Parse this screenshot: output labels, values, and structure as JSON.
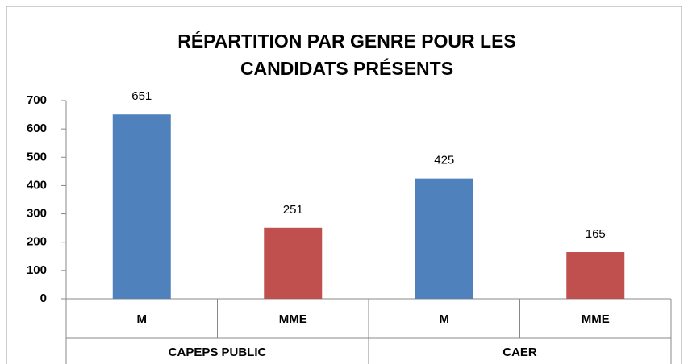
{
  "chart_data": {
    "type": "bar",
    "title": "RÉPARTITION PAR GENRE POUR LES CANDIDATS PRÉSENTS",
    "groups": [
      {
        "name": "CAPEPS PUBLIC",
        "categories": [
          "M",
          "MME"
        ],
        "values": [
          651,
          251
        ]
      },
      {
        "name": "CAER",
        "categories": [
          "M",
          "MME"
        ],
        "values": [
          425,
          165
        ]
      }
    ],
    "colors": [
      "#4f81bd",
      "#c0504d"
    ],
    "ylim": [
      0,
      700
    ],
    "yticks": [
      0,
      100,
      200,
      300,
      400,
      500,
      600,
      700
    ],
    "grid": false
  }
}
